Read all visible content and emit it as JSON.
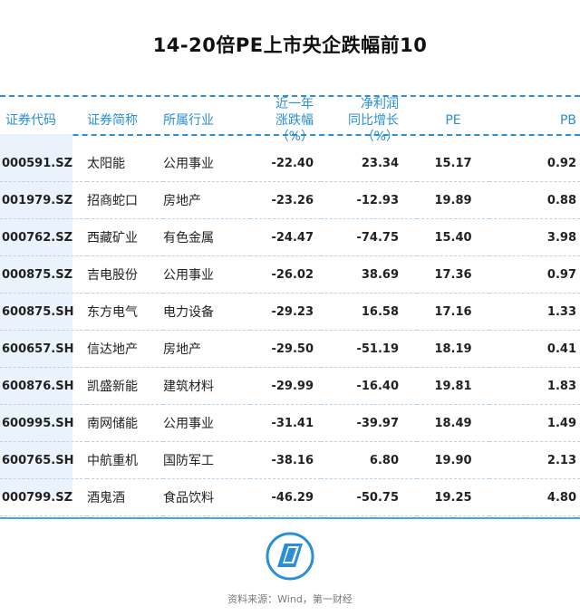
{
  "title": "14-20倍PE上市央企跌幅前10",
  "headers": {
    "code": "证券代码",
    "name": "证券简称",
    "industry": "所属行业",
    "change_line1": "近一年",
    "change_line2": "涨跌幅（%）",
    "profit_line1": "净利润",
    "profit_line2": "同比增长（%）",
    "pe": "PE",
    "pb": "PB"
  },
  "rows": [
    {
      "code": "000591.SZ",
      "name": "太阳能",
      "industry": "公用事业",
      "change": "-22.40",
      "profit": "23.34",
      "pe": "15.17",
      "pb": "0.92"
    },
    {
      "code": "001979.SZ",
      "name": "招商蛇口",
      "industry": "房地产",
      "change": "-23.26",
      "profit": "-12.93",
      "pe": "19.89",
      "pb": "0.88"
    },
    {
      "code": "000762.SZ",
      "name": "西藏矿业",
      "industry": "有色金属",
      "change": "-24.47",
      "profit": "-74.75",
      "pe": "15.40",
      "pb": "3.98"
    },
    {
      "code": "000875.SZ",
      "name": "吉电股份",
      "industry": "公用事业",
      "change": "-26.02",
      "profit": "38.69",
      "pe": "17.36",
      "pb": "0.97"
    },
    {
      "code": "600875.SH",
      "name": "东方电气",
      "industry": "电力设备",
      "change": "-29.23",
      "profit": "16.58",
      "pe": "17.16",
      "pb": "1.33"
    },
    {
      "code": "600657.SH",
      "name": "信达地产",
      "industry": "房地产",
      "change": "-29.50",
      "profit": "-51.19",
      "pe": "18.19",
      "pb": "0.41"
    },
    {
      "code": "600876.SH",
      "name": "凯盛新能",
      "industry": "建筑材料",
      "change": "-29.99",
      "profit": "-16.40",
      "pe": "19.81",
      "pb": "1.83"
    },
    {
      "code": "600995.SH",
      "name": "南网储能",
      "industry": "公用事业",
      "change": "-31.41",
      "profit": "-39.97",
      "pe": "18.49",
      "pb": "1.49"
    },
    {
      "code": "600765.SH",
      "name": "中航重机",
      "industry": "国防军工",
      "change": "-38.16",
      "profit": "6.80",
      "pe": "19.90",
      "pb": "2.13"
    },
    {
      "code": "000799.SZ",
      "name": "酒鬼酒",
      "industry": "食品饮料",
      "change": "-46.29",
      "profit": "-50.75",
      "pe": "19.25",
      "pb": "4.80"
    }
  ],
  "source": "资料来源：Wind，第一财经",
  "colors": {
    "accent": "#2a8fd6",
    "strip": "#eaf3fb"
  }
}
